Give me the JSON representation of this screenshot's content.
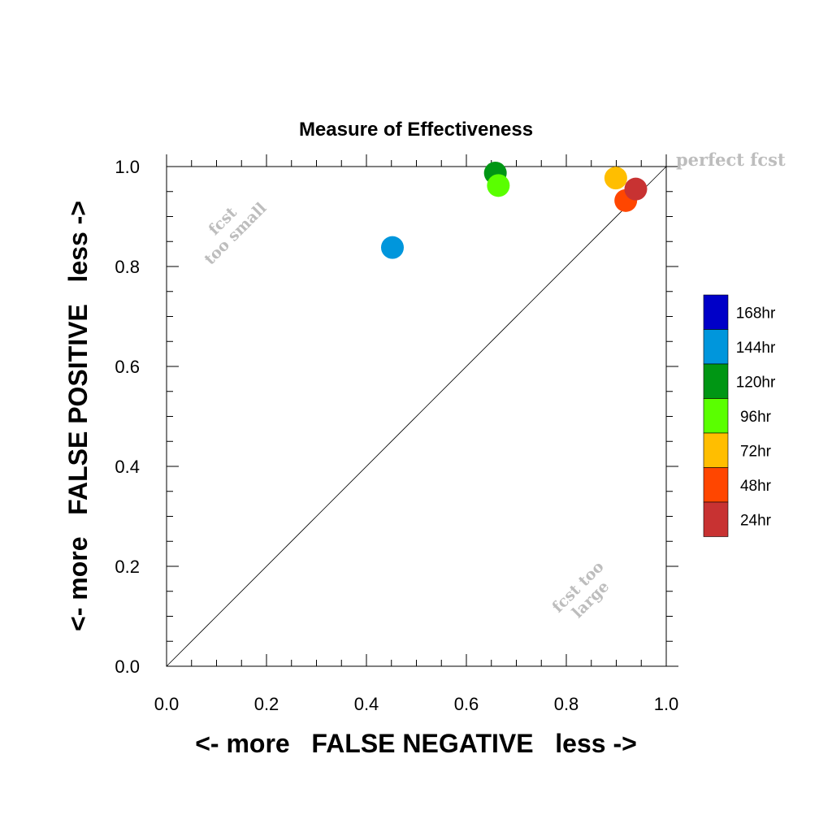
{
  "chart_data": {
    "type": "scatter",
    "title": "Measure of Effectiveness",
    "xlabel": "<- more   FALSE NEGATIVE   less ->",
    "ylabel": "<- more   FALSE POSITIVE   less ->",
    "xlim": [
      0,
      1
    ],
    "ylim": [
      0,
      1
    ],
    "x_ticks": [
      "0.0",
      "0.2",
      "0.4",
      "0.6",
      "0.8",
      "1.0"
    ],
    "y_ticks": [
      "0.0",
      "0.2",
      "0.4",
      "0.6",
      "0.8",
      "1.0"
    ],
    "grid": false,
    "diagonal_line": true,
    "legend_placement": "right",
    "legend": [
      {
        "label": "168hr",
        "color": "#0000c8"
      },
      {
        "label": "144hr",
        "color": "#0096dc"
      },
      {
        "label": "120hr",
        "color": "#009614"
      },
      {
        "label": "96hr",
        "color": "#5aff00"
      },
      {
        "label": "72hr",
        "color": "#ffbe00"
      },
      {
        "label": "48hr",
        "color": "#ff4600"
      },
      {
        "label": "24hr",
        "color": "#c83232"
      }
    ],
    "points": [
      {
        "label": "144hr",
        "x": 0.452,
        "y": 0.838,
        "color": "#0096dc"
      },
      {
        "label": "120hr",
        "x": 0.658,
        "y": 0.987,
        "color": "#009614"
      },
      {
        "label": "96hr",
        "x": 0.664,
        "y": 0.962,
        "color": "#5aff00"
      },
      {
        "label": "72hr",
        "x": 0.899,
        "y": 0.977,
        "color": "#ffbe00"
      },
      {
        "label": "48hr",
        "x": 0.919,
        "y": 0.932,
        "color": "#ff4600"
      },
      {
        "label": "24hr",
        "x": 0.939,
        "y": 0.955,
        "color": "#c83232"
      }
    ],
    "annotations": {
      "perfect": "perfect fcst",
      "too_small_1": "fcst",
      "too_small_2": "too small",
      "too_large_1": "fcst too",
      "too_large_2": "large"
    }
  }
}
